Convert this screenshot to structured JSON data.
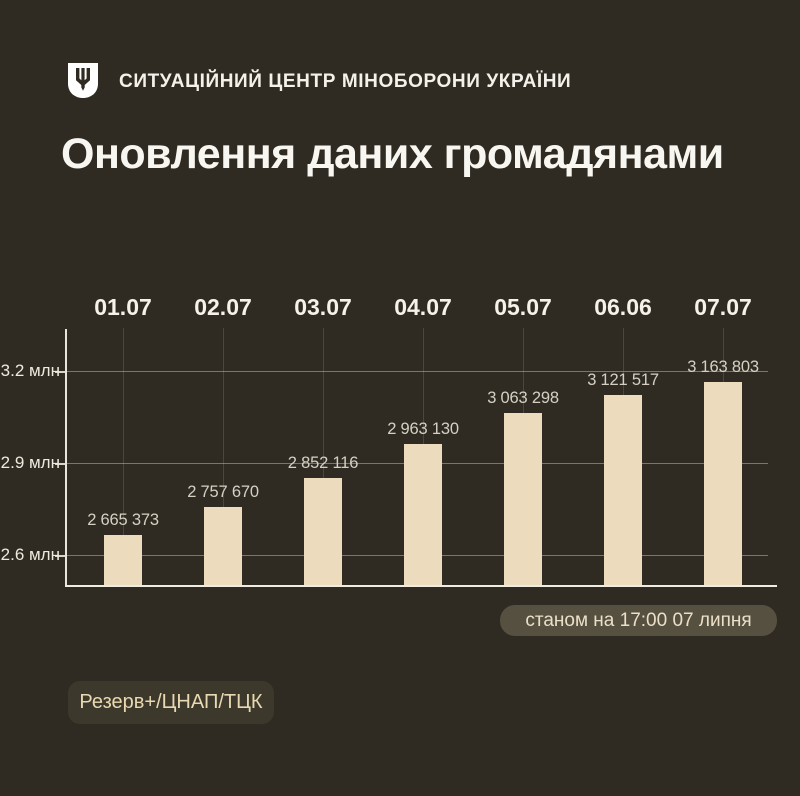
{
  "header": {
    "org_name": "СИТУАЦІЙНИЙ ЦЕНТР МІНОБОРОНИ УКРАЇНИ",
    "logo_icon": "mod-ukraine-trident-shield"
  },
  "title": "Оновлення даних громадянами",
  "chart_data": {
    "type": "bar",
    "title": "Оновлення даних громадянами",
    "categories": [
      "01.07",
      "02.07",
      "03.07",
      "04.07",
      "05.07",
      "06.06",
      "07.07"
    ],
    "values": [
      2665373,
      2757670,
      2852116,
      2963130,
      3063298,
      3121517,
      3163803
    ],
    "value_labels": [
      "2 665 373",
      "2 757 670",
      "2 852 116",
      "2 963 130",
      "3 063 298",
      "3 121 517",
      "3 163 803"
    ],
    "xlabel": "",
    "ylabel": "",
    "yticks": [
      3200000,
      2900000,
      2600000
    ],
    "ytick_labels": [
      "3.2 млн",
      "2.9 млн",
      "2.6 млн"
    ],
    "ylim": [
      2500000,
      3340000
    ],
    "grid": true,
    "legend": false,
    "bar_color": "#ecdbbd",
    "background_color": "#2f2b22"
  },
  "badges": {
    "timestamp": "станом на 17:00 07 липня",
    "source": "Резерв+/ЦНАП/ТЦК"
  }
}
